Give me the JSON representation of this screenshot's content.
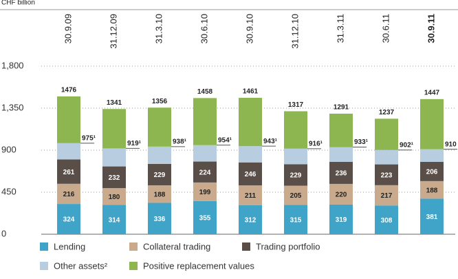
{
  "chart_data": {
    "type": "stacked_bar",
    "y_label": "CHF billion",
    "categories": [
      "30.9.09",
      "31.12.09",
      "31.3.10",
      "30.6.10",
      "30.9.10",
      "31.12.10",
      "31.3.11",
      "30.6.11",
      "30.9.11"
    ],
    "series": [
      {
        "name": "Lending",
        "color": "#3fa4c8",
        "values": [
          324,
          314,
          336,
          355,
          312,
          315,
          319,
          308,
          381
        ],
        "label_color": "#ffffff"
      },
      {
        "name": "Collateral trading",
        "color": "#c9aa8c",
        "values": [
          216,
          180,
          188,
          199,
          211,
          205,
          220,
          217,
          188
        ],
        "label_color": "#222222"
      },
      {
        "name": "Trading portfolio",
        "color": "#5a4f48",
        "values": [
          261,
          232,
          229,
          224,
          246,
          229,
          236,
          223,
          206
        ],
        "label_color": "#ffffff"
      },
      {
        "name": "Other assets²",
        "color": "#b8cee0",
        "values": [
          174,
          193,
          185,
          176,
          174,
          167,
          158,
          154,
          135
        ]
      },
      {
        "name": "Positive replacement values",
        "color": "#8db650",
        "values": [
          501,
          422,
          418,
          504,
          518,
          401,
          358,
          335,
          537
        ]
      }
    ],
    "totals": [
      1476,
      1341,
      1356,
      1458,
      1461,
      1317,
      1291,
      1237,
      1447
    ],
    "subtotals": [
      975,
      919,
      938,
      954,
      943,
      916,
      933,
      902,
      910
    ],
    "subtotal_labels": [
      "975¹",
      "919¹",
      "938¹",
      "954¹",
      "943¹",
      "916¹",
      "933¹",
      "902¹",
      "910"
    ],
    "ylim": [
      0,
      1800
    ],
    "yticks": [
      0,
      450,
      900,
      {
        "value": 1350,
        "label": "1,350"
      },
      {
        "value": 1800,
        "label": "1,800"
      }
    ],
    "grid": true
  }
}
